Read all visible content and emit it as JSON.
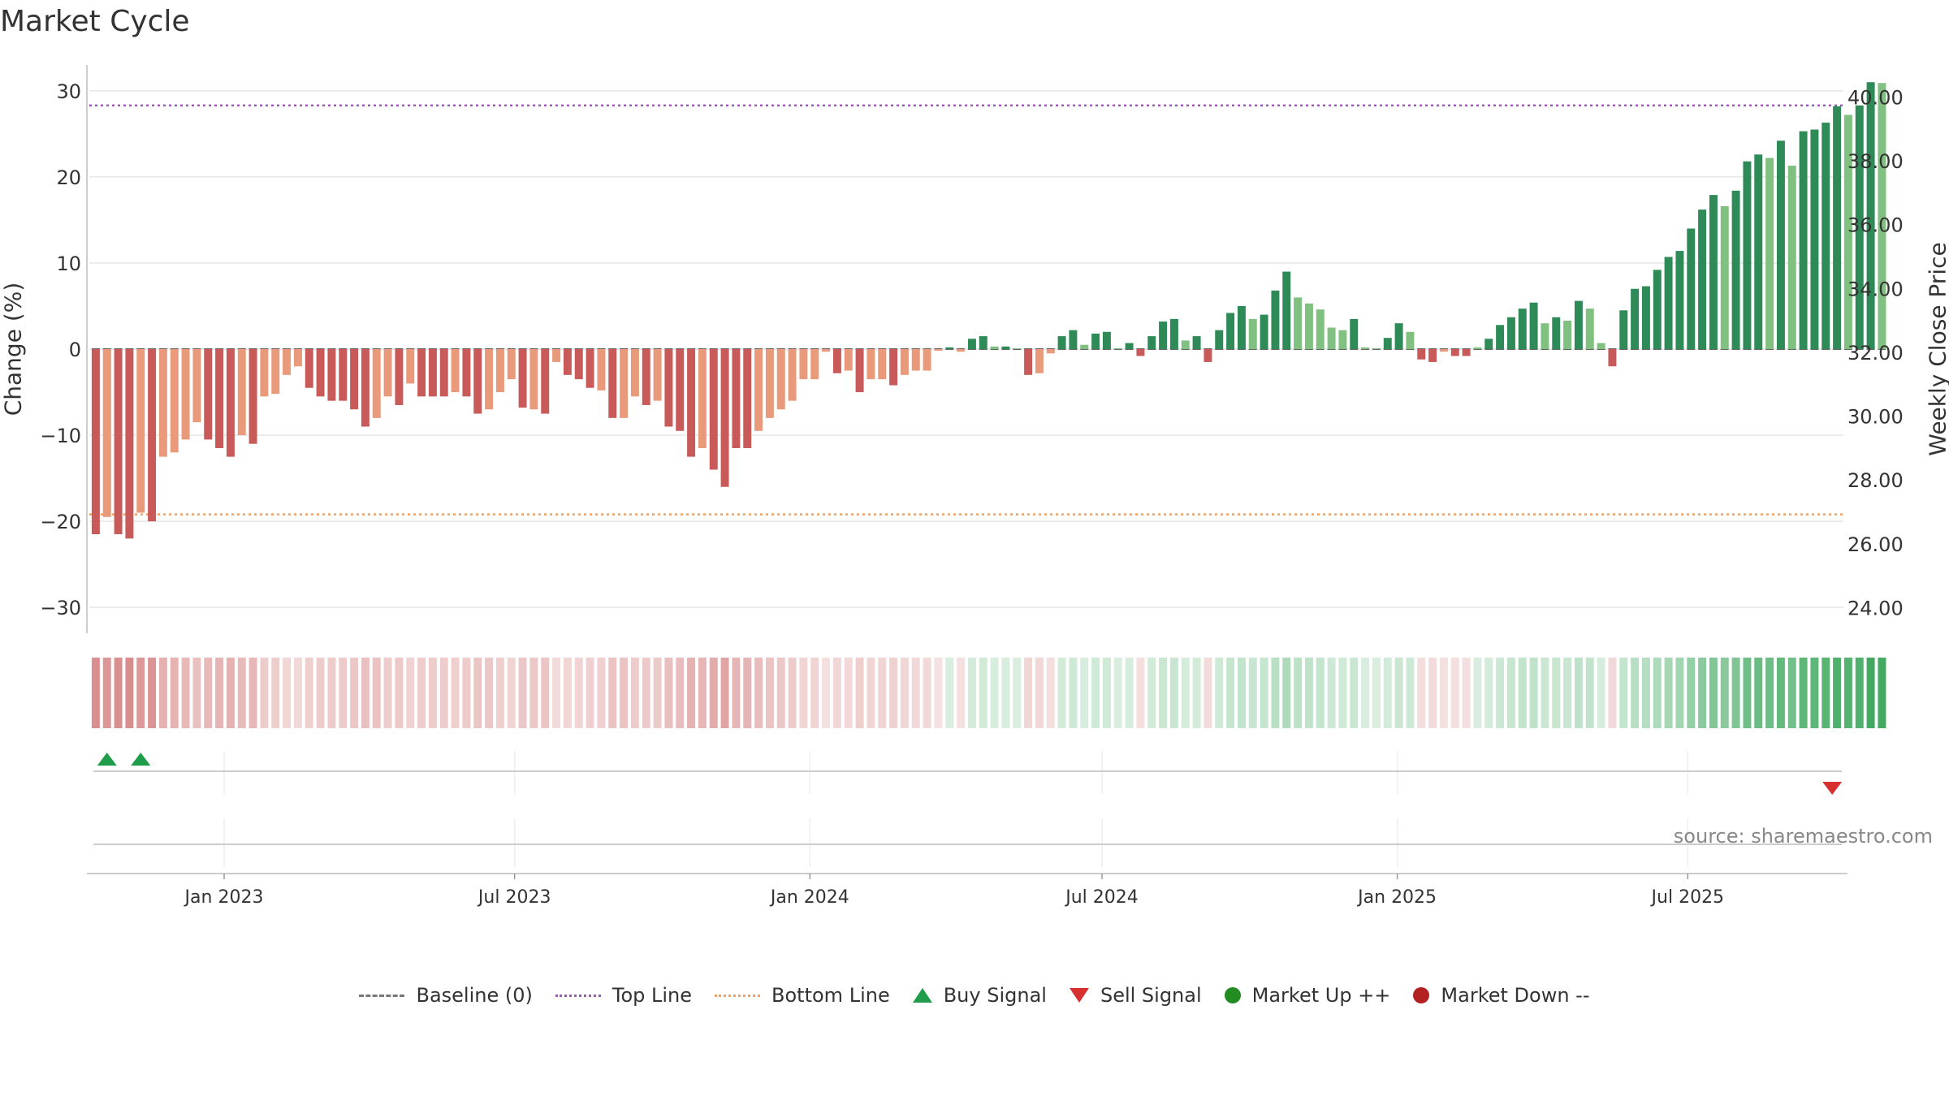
{
  "title": "Market Cycle",
  "source": "source: sharemaestro.com",
  "colors": {
    "down_dark": "#c85a5a",
    "down_light": "#e89a7a",
    "up_dark": "#2e8b57",
    "up_light": "#80c080",
    "top_line": "#9b59b6",
    "bottom_line": "#f0a060",
    "buy": "#1f9d4a",
    "sell": "#d63031",
    "market_up": "#228b22",
    "market_down": "#b22222"
  },
  "legend": [
    {
      "label": "Baseline (0)",
      "icon": "dashed-line-gray"
    },
    {
      "label": "Top Line",
      "icon": "dotted-line-purple"
    },
    {
      "label": "Bottom Line",
      "icon": "dotted-line-orange"
    },
    {
      "label": "Buy Signal",
      "icon": "triangle-up-green"
    },
    {
      "label": "Sell Signal",
      "icon": "triangle-down-red"
    },
    {
      "label": "Market Up ++",
      "icon": "circle-green"
    },
    {
      "label": "Market Down --",
      "icon": "circle-red"
    }
  ],
  "chart_data": {
    "type": "bar",
    "title": "Market Cycle",
    "ylabel": "Change (%)",
    "y2label": "Weekly Close Price",
    "ylim": [
      -33,
      33
    ],
    "y_ticks": [
      "30",
      "20",
      "10",
      "0",
      "−10",
      "−20",
      "−30"
    ],
    "y_tick_values": [
      30,
      20,
      10,
      0,
      -10,
      -20,
      -30
    ],
    "y2lim": [
      23.2,
      41.0
    ],
    "y2_ticks": [
      "40.00",
      "38.00",
      "36.00",
      "34.00",
      "32.00",
      "30.00",
      "28.00",
      "26.00",
      "24.00"
    ],
    "y2_tick_values": [
      40,
      38,
      36,
      34,
      32,
      30,
      28,
      26,
      24
    ],
    "x_range": [
      "2022-10-09",
      "2025-10-06"
    ],
    "x_ticks": [
      "Jan 2023",
      "Jul 2023",
      "Jan 2024",
      "Jul 2024",
      "Jan 2025",
      "Jul 2025"
    ],
    "x_tick_dates": [
      "2023-01-01",
      "2023-07-01",
      "2024-01-01",
      "2024-07-01",
      "2025-01-01",
      "2025-07-01"
    ],
    "first_week": "2022-10-13",
    "top_line": 28.3,
    "bottom_line": -19.2,
    "baseline": 0,
    "grid": true,
    "legend_position": "bottom",
    "values": [
      -21.5,
      -19.5,
      -21.5,
      -22.0,
      -19.0,
      -20.0,
      -12.5,
      -12.0,
      -10.5,
      -8.5,
      -10.5,
      -11.5,
      -12.5,
      -10.0,
      -11.0,
      -5.5,
      -5.2,
      -3.0,
      -2.0,
      -4.5,
      -5.5,
      -6.0,
      -6.0,
      -7.0,
      -9.0,
      -8.0,
      -5.5,
      -6.5,
      -4.0,
      -5.5,
      -5.5,
      -5.5,
      -5.0,
      -5.5,
      -7.5,
      -7.0,
      -5.0,
      -3.5,
      -6.8,
      -7.0,
      -7.5,
      -1.5,
      -3.0,
      -3.5,
      -4.5,
      -4.8,
      -8.0,
      -8.0,
      -5.5,
      -6.5,
      -6.0,
      -9.0,
      -9.5,
      -12.5,
      -11.5,
      -14.0,
      -16.0,
      -11.5,
      -11.5,
      -9.5,
      -8.0,
      -7.0,
      -6.0,
      -3.5,
      -3.5,
      -0.3,
      -2.8,
      -2.5,
      -5.0,
      -3.5,
      -3.5,
      -4.2,
      -3.0,
      -2.5,
      -2.5,
      -0.2,
      0.2,
      -0.3,
      1.2,
      1.5,
      0.3,
      0.3,
      0.1,
      -3.0,
      -2.8,
      -0.5,
      1.5,
      2.2,
      0.5,
      1.8,
      2.0,
      0.1,
      0.7,
      -0.8,
      1.5,
      3.2,
      3.5,
      1.0,
      1.5,
      -1.5,
      2.2,
      4.2,
      5.0,
      3.5,
      4.0,
      6.8,
      9.0,
      6.0,
      5.3,
      4.6,
      2.5,
      2.2,
      3.5,
      0.2,
      0.1,
      1.3,
      3.0,
      2.0,
      -1.2,
      -1.5,
      -0.3,
      -0.8,
      -0.8,
      0.2,
      1.2,
      2.8,
      3.7,
      4.7,
      5.4,
      3.0,
      3.7,
      3.3,
      5.6,
      4.7,
      0.7,
      -2.0,
      4.5,
      7.0,
      7.3,
      9.2,
      10.7,
      11.4,
      14.0,
      16.2,
      17.9,
      16.6,
      18.4,
      21.8,
      22.6,
      22.2,
      24.2,
      21.3,
      25.3,
      25.5,
      26.3,
      28.2,
      27.2,
      28.3,
      31.0,
      30.9
    ],
    "shade": [
      1,
      0,
      1,
      1,
      0,
      1,
      0,
      0,
      0,
      0,
      1,
      1,
      1,
      0,
      1,
      0,
      0,
      0,
      0,
      1,
      1,
      1,
      1,
      1,
      1,
      0,
      0,
      1,
      0,
      1,
      1,
      1,
      0,
      1,
      1,
      0,
      0,
      0,
      1,
      0,
      1,
      0,
      1,
      1,
      1,
      0,
      1,
      0,
      0,
      1,
      0,
      1,
      1,
      1,
      0,
      1,
      1,
      1,
      1,
      0,
      0,
      0,
      0,
      0,
      0,
      0,
      1,
      0,
      1,
      0,
      0,
      1,
      0,
      0,
      0,
      0,
      1,
      0,
      1,
      1,
      0,
      1,
      0,
      1,
      0,
      0,
      1,
      1,
      0,
      1,
      1,
      0,
      1,
      1,
      1,
      1,
      1,
      0,
      1,
      1,
      1,
      1,
      1,
      0,
      1,
      1,
      1,
      0,
      0,
      0,
      0,
      0,
      1,
      0,
      0,
      1,
      1,
      0,
      1,
      1,
      0,
      1,
      1,
      0,
      1,
      1,
      1,
      1,
      1,
      0,
      1,
      0,
      1,
      0,
      0,
      1,
      1,
      1,
      1,
      1,
      1,
      1,
      1,
      1,
      1,
      0,
      1,
      1,
      1,
      0,
      1,
      0,
      1,
      1,
      1,
      1,
      0,
      1,
      1,
      0
    ],
    "buy_signal_dates": [
      "2022-10-20",
      "2022-11-10"
    ],
    "sell_signal_dates": [
      "2025-09-29"
    ]
  }
}
